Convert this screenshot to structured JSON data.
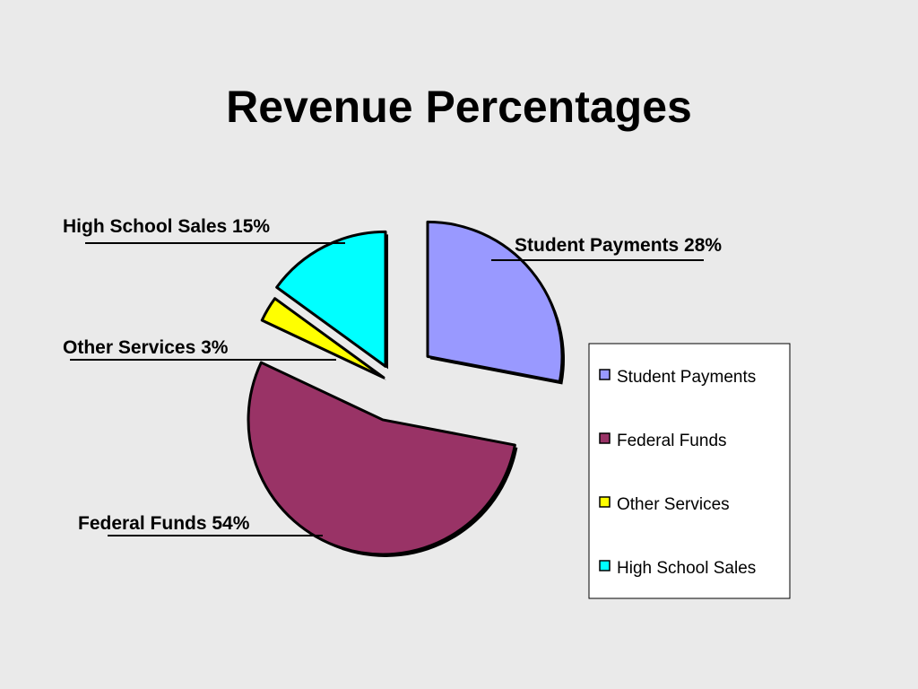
{
  "chart_data": {
    "type": "pie",
    "title": "Revenue Percentages",
    "categories": [
      "Student Payments",
      "Federal Funds",
      "Other Services",
      "High School Sales"
    ],
    "values": [
      28,
      54,
      3,
      15
    ],
    "value_labels": [
      "Student Payments 28%",
      "Federal Funds 54%",
      "Other Services 3%",
      "High School Sales 15%"
    ],
    "colors": [
      "#9999ff",
      "#993366",
      "#ffff00",
      "#00ffff"
    ],
    "legend": "right"
  }
}
